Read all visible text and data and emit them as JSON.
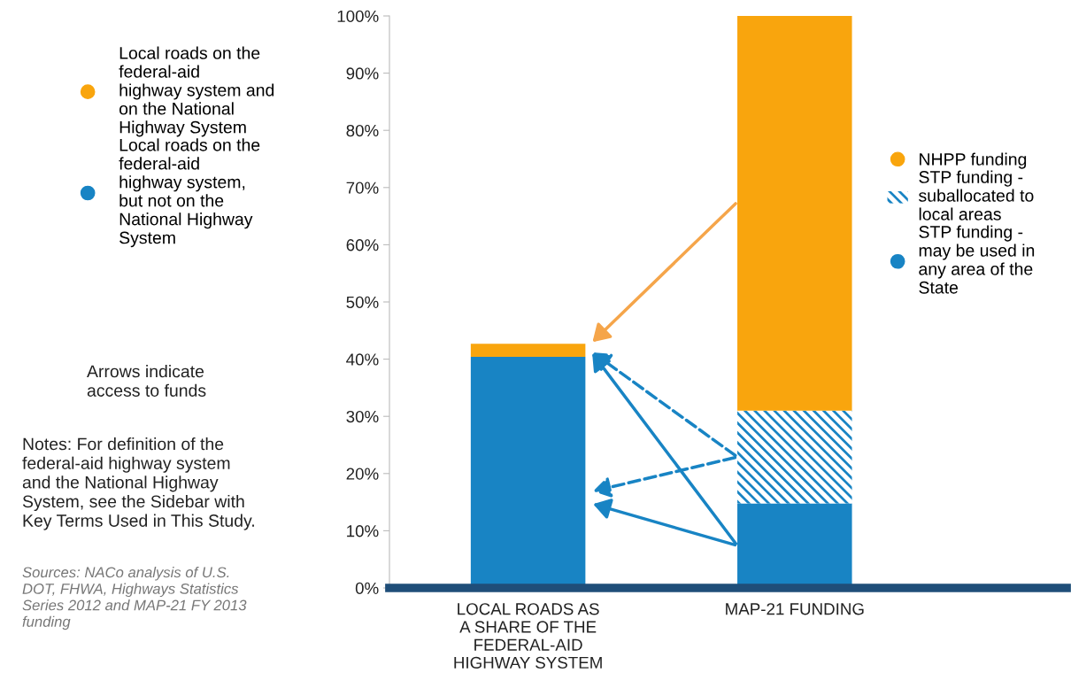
{
  "chart_data": {
    "type": "bar",
    "stacked": true,
    "categories": [
      "LOCAL ROADS AS A SHARE OF THE FEDERAL-AID HIGHWAY SYSTEM",
      "MAP-21 FUNDING"
    ],
    "series": [
      {
        "name": "Local roads on the federal-aid highway system, but not on the National Highway System",
        "color": "#1884c4",
        "values": [
          40.4,
          null
        ]
      },
      {
        "name": "Local roads on the federal-aid highway system and on the National Highway System",
        "color": "#f9a50d",
        "values": [
          2.3,
          null
        ]
      },
      {
        "name": "STP funding - may be used in any area of the State",
        "color": "#1884c4",
        "values": [
          null,
          14.8
        ]
      },
      {
        "name": "STP funding - suballocated to local areas",
        "color": "#1884c4",
        "values": [
          null,
          16.2
        ]
      },
      {
        "name": "NHPP funding",
        "color": "#f9a50d",
        "values": [
          null,
          69.0
        ]
      }
    ],
    "ylim": [
      0,
      100
    ],
    "yticks": [
      {
        "value": 0,
        "label": "0%"
      },
      {
        "value": 10,
        "label": "10%"
      },
      {
        "value": 20,
        "label": "20%"
      },
      {
        "value": 30,
        "label": "30%"
      },
      {
        "value": 40,
        "label": "40%"
      },
      {
        "value": 50,
        "label": "50%"
      },
      {
        "value": 60,
        "label": "60%"
      },
      {
        "value": 70,
        "label": "70%"
      },
      {
        "value": 80,
        "label": "80%"
      },
      {
        "value": 90,
        "label": "90%"
      },
      {
        "value": 100,
        "label": "100%"
      }
    ],
    "legend": "top",
    "annotations": [
      "Arrows indicate access to funds",
      "Notes: For definition of the federal-aid highway system and the National Highway System, see the Sidebar with Key Terms Used in This Study.",
      "Sources: NACo analysis of U.S. DOT, FHWA, Highways Statistics Series 2012 and MAP-21 FY 2013 funding"
    ]
  }
}
